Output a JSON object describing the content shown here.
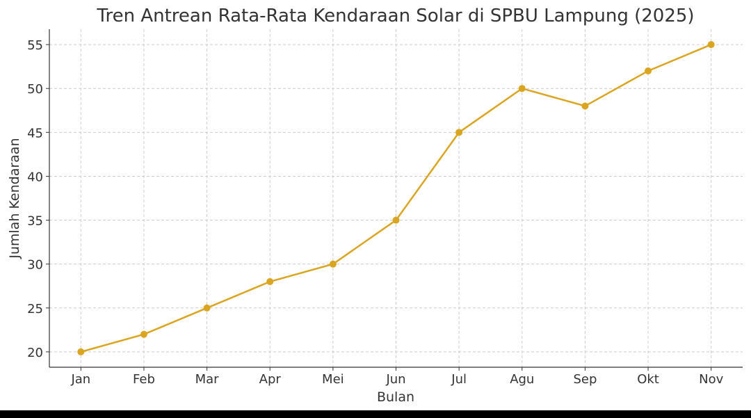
{
  "chart_data": {
    "type": "line",
    "title": "Tren Antrean Rata-Rata Kendaraan Solar di SPBU Lampung (2025)",
    "xlabel": "Bulan",
    "ylabel": "Jumlah Kendaraan",
    "categories": [
      "Jan",
      "Feb",
      "Mar",
      "Apr",
      "Mei",
      "Jun",
      "Jul",
      "Agu",
      "Sep",
      "Okt",
      "Nov"
    ],
    "values": [
      20,
      22,
      25,
      28,
      30,
      35,
      45,
      50,
      48,
      52,
      55
    ],
    "yticks": [
      20,
      25,
      30,
      35,
      40,
      45,
      50,
      55
    ],
    "ylim": [
      18.25,
      56.75
    ],
    "grid": true,
    "marker": "circle",
    "color": "#DAA520"
  }
}
